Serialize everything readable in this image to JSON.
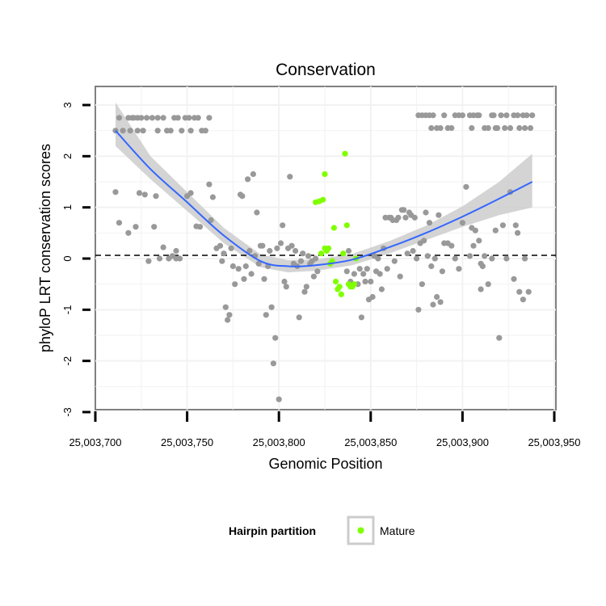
{
  "chart_data": {
    "type": "scatter",
    "title": "Conservation",
    "xlabel": "Genomic Position",
    "ylabel": "phyloP LRT conservation scores",
    "xlim": [
      25003700,
      25003950
    ],
    "ylim": [
      -3,
      3
    ],
    "x_ticks": [
      25003700,
      25003750,
      25003800,
      25003850,
      25003900,
      25003950
    ],
    "x_tick_labels": [
      "25,003,700",
      "25,003,750",
      "25,003,800",
      "25,003,850",
      "25,003,900",
      "25,003,950"
    ],
    "y_ticks": [
      -3,
      -2,
      -1,
      0,
      1,
      2,
      3
    ],
    "y_tick_labels": [
      "-3",
      "-2",
      "-1",
      "0",
      "1",
      "2",
      "3"
    ],
    "reference_line": {
      "y": 0,
      "style": "dashed"
    },
    "legend": {
      "title": "Hairpin partition",
      "entries": [
        {
          "label": "Mature",
          "color": "#7fff00"
        }
      ]
    },
    "colors": {
      "other": "#999999",
      "mature": "#7fff00",
      "smooth": "#3366ff",
      "band": "#cccccc"
    },
    "smooth": {
      "x": [
        25003711,
        25003730,
        25003750,
        25003770,
        25003790,
        25003805,
        25003820,
        25003840,
        25003860,
        25003880,
        25003900,
        25003920,
        25003938
      ],
      "y": [
        2.5,
        1.75,
        1.1,
        0.45,
        -0.05,
        -0.15,
        -0.13,
        -0.02,
        0.22,
        0.5,
        0.82,
        1.17,
        1.5
      ],
      "lower": [
        2.2,
        1.55,
        0.93,
        0.3,
        -0.17,
        -0.27,
        -0.24,
        -0.13,
        0.1,
        0.36,
        0.62,
        0.85,
        1.0
      ],
      "upper": [
        3.05,
        2.0,
        1.3,
        0.6,
        0.08,
        -0.03,
        -0.02,
        0.09,
        0.34,
        0.64,
        1.02,
        1.5,
        2.05
      ]
    },
    "series": [
      {
        "name": "Other",
        "points": [
          [
            25003711,
            2.5
          ],
          [
            25003713,
            2.75
          ],
          [
            25003715,
            2.5
          ],
          [
            25003718,
            2.75
          ],
          [
            25003719,
            2.5
          ],
          [
            25003720,
            2.75
          ],
          [
            25003721,
            2.75
          ],
          [
            25003723,
            2.5
          ],
          [
            25003723,
            2.75
          ],
          [
            25003725,
            2.75
          ],
          [
            25003726,
            2.5
          ],
          [
            25003728,
            2.75
          ],
          [
            25003731,
            2.75
          ],
          [
            25003734,
            2.5
          ],
          [
            25003734,
            2.75
          ],
          [
            25003737,
            2.75
          ],
          [
            25003739,
            2.5
          ],
          [
            25003741,
            2.5
          ],
          [
            25003743,
            2.75
          ],
          [
            25003745,
            2.75
          ],
          [
            25003747,
            2.5
          ],
          [
            25003749,
            2.75
          ],
          [
            25003751,
            2.75
          ],
          [
            25003752,
            2.5
          ],
          [
            25003754,
            2.75
          ],
          [
            25003756,
            2.75
          ],
          [
            25003758,
            2.5
          ],
          [
            25003760,
            2.5
          ],
          [
            25003762,
            2.75
          ],
          [
            25003711,
            1.3
          ],
          [
            25003713,
            0.7
          ],
          [
            25003718,
            0.5
          ],
          [
            25003722,
            0.62
          ],
          [
            25003724,
            1.28
          ],
          [
            25003727,
            1.25
          ],
          [
            25003729,
            -0.05
          ],
          [
            25003732,
            0.62
          ],
          [
            25003733,
            1.22
          ],
          [
            25003735,
            0.0
          ],
          [
            25003737,
            0.22
          ],
          [
            25003740,
            0.0
          ],
          [
            25003742,
            0.05
          ],
          [
            25003744,
            0.15
          ],
          [
            25003744,
            0.0
          ],
          [
            25003746,
            0.0
          ],
          [
            25003750,
            1.22
          ],
          [
            25003752,
            1.28
          ],
          [
            25003755,
            0.63
          ],
          [
            25003757,
            0.62
          ],
          [
            25003762,
            1.45
          ],
          [
            25003763,
            0.75
          ],
          [
            25003764,
            1.2
          ],
          [
            25003766,
            0.2
          ],
          [
            25003768,
            0.25
          ],
          [
            25003769,
            -0.05
          ],
          [
            25003770,
            0.1
          ],
          [
            25003771,
            -0.95
          ],
          [
            25003772,
            -1.2
          ],
          [
            25003773,
            -1.1
          ],
          [
            25003774,
            0.2
          ],
          [
            25003775,
            -0.15
          ],
          [
            25003776,
            -0.5
          ],
          [
            25003778,
            -0.2
          ],
          [
            25003779,
            1.25
          ],
          [
            25003780,
            1.22
          ],
          [
            25003781,
            -0.4
          ],
          [
            25003782,
            -0.15
          ],
          [
            25003783,
            1.55
          ],
          [
            25003784,
            0.15
          ],
          [
            25003785,
            -0.3
          ],
          [
            25003786,
            1.65
          ],
          [
            25003787,
            0.05
          ],
          [
            25003788,
            0.9
          ],
          [
            25003789,
            -0.1
          ],
          [
            25003790,
            0.25
          ],
          [
            25003791,
            0.25
          ],
          [
            25003792,
            -0.4
          ],
          [
            25003793,
            -1.1
          ],
          [
            25003794,
            -0.15
          ],
          [
            25003795,
            0.15
          ],
          [
            25003796,
            -0.95
          ],
          [
            25003797,
            -2.05
          ],
          [
            25003798,
            -1.55
          ],
          [
            25003799,
            0.2
          ],
          [
            25003800,
            -2.75
          ],
          [
            25003801,
            0.3
          ],
          [
            25003802,
            0.65
          ],
          [
            25003803,
            -0.45
          ],
          [
            25003804,
            -0.55
          ],
          [
            25003805,
            0.2
          ],
          [
            25003806,
            1.6
          ],
          [
            25003807,
            0.25
          ],
          [
            25003808,
            -0.1
          ],
          [
            25003809,
            0.15
          ],
          [
            25003810,
            -0.15
          ],
          [
            25003811,
            -1.15
          ],
          [
            25003812,
            -0.05
          ],
          [
            25003813,
            0.1
          ],
          [
            25003814,
            -0.65
          ],
          [
            25003815,
            -0.55
          ],
          [
            25003816,
            0.05
          ],
          [
            25003817,
            -0.1
          ],
          [
            25003818,
            -0.05
          ],
          [
            25003819,
            -0.35
          ],
          [
            25003820,
            0.0
          ],
          [
            25003821,
            -0.25
          ],
          [
            25003837,
            -0.25
          ],
          [
            25003838,
            0.15
          ],
          [
            25003839,
            -0.45
          ],
          [
            25003841,
            -0.3
          ],
          [
            25003843,
            -0.5
          ],
          [
            25003844,
            -0.2
          ],
          [
            25003845,
            -1.15
          ],
          [
            25003846,
            -0.3
          ],
          [
            25003847,
            -0.45
          ],
          [
            25003848,
            -0.2
          ],
          [
            25003849,
            -0.8
          ],
          [
            25003850,
            -0.45
          ],
          [
            25003851,
            -0.75
          ],
          [
            25003852,
            0.05
          ],
          [
            25003853,
            -0.25
          ],
          [
            25003854,
            0.0
          ],
          [
            25003855,
            -0.3
          ],
          [
            25003856,
            -0.6
          ],
          [
            25003857,
            0.2
          ],
          [
            25003858,
            0.8
          ],
          [
            25003859,
            -0.2
          ],
          [
            25003860,
            0.8
          ],
          [
            25003861,
            0.8
          ],
          [
            25003862,
            0.75
          ],
          [
            25003863,
            -0.05
          ],
          [
            25003864,
            0.75
          ],
          [
            25003865,
            0.8
          ],
          [
            25003866,
            -0.35
          ],
          [
            25003867,
            0.95
          ],
          [
            25003868,
            0.95
          ],
          [
            25003869,
            0.8
          ],
          [
            25003870,
            0.1
          ],
          [
            25003871,
            0.9
          ],
          [
            25003872,
            0.85
          ],
          [
            25003873,
            0.15
          ],
          [
            25003874,
            0.8
          ],
          [
            25003875,
            0.0
          ],
          [
            25003876,
            -1.0
          ],
          [
            25003877,
            0.3
          ],
          [
            25003878,
            -0.5
          ],
          [
            25003879,
            0.35
          ],
          [
            25003880,
            0.9
          ],
          [
            25003881,
            0.05
          ],
          [
            25003882,
            0.7
          ],
          [
            25003883,
            -0.15
          ],
          [
            25003884,
            -0.9
          ],
          [
            25003885,
            0.0
          ],
          [
            25003886,
            -0.75
          ],
          [
            25003887,
            0.85
          ],
          [
            25003888,
            -0.85
          ],
          [
            25003889,
            -0.25
          ],
          [
            25003890,
            0.3
          ],
          [
            25003892,
            0.3
          ],
          [
            25003894,
            0.25
          ],
          [
            25003896,
            0.0
          ],
          [
            25003898,
            -0.2
          ],
          [
            25003900,
            0.7
          ],
          [
            25003902,
            1.4
          ],
          [
            25003904,
            0.05
          ],
          [
            25003905,
            0.6
          ],
          [
            25003906,
            0.25
          ],
          [
            25003907,
            0.55
          ],
          [
            25003909,
            0.35
          ],
          [
            25003910,
            -0.1
          ],
          [
            25003910,
            -0.6
          ],
          [
            25003911,
            -0.15
          ],
          [
            25003912,
            0.05
          ],
          [
            25003914,
            -0.5
          ],
          [
            25003916,
            0.0
          ],
          [
            25003918,
            0.55
          ],
          [
            25003920,
            -1.55
          ],
          [
            25003922,
            0.65
          ],
          [
            25003924,
            0.0
          ],
          [
            25003926,
            1.3
          ],
          [
            25003928,
            -0.4
          ],
          [
            25003929,
            0.65
          ],
          [
            25003930,
            0.5
          ],
          [
            25003931,
            -0.65
          ],
          [
            25003933,
            -0.8
          ],
          [
            25003934,
            0.0
          ],
          [
            25003936,
            -0.65
          ],
          [
            25003876,
            2.8
          ],
          [
            25003878,
            2.8
          ],
          [
            25003880,
            2.8
          ],
          [
            25003882,
            2.8
          ],
          [
            25003883,
            2.55
          ],
          [
            25003884,
            2.8
          ],
          [
            25003886,
            2.55
          ],
          [
            25003888,
            2.55
          ],
          [
            25003890,
            2.8
          ],
          [
            25003892,
            2.55
          ],
          [
            25003894,
            2.55
          ],
          [
            25003896,
            2.8
          ],
          [
            25003898,
            2.8
          ],
          [
            25003900,
            2.8
          ],
          [
            25003904,
            2.8
          ],
          [
            25003905,
            2.55
          ],
          [
            25003906,
            2.8
          ],
          [
            25003908,
            2.8
          ],
          [
            25003909,
            2.8
          ],
          [
            25003912,
            2.55
          ],
          [
            25003914,
            2.55
          ],
          [
            25003916,
            2.8
          ],
          [
            25003917,
            2.8
          ],
          [
            25003918,
            2.55
          ],
          [
            25003919,
            2.55
          ],
          [
            25003921,
            2.8
          ],
          [
            25003923,
            2.55
          ],
          [
            25003924,
            2.8
          ],
          [
            25003926,
            2.55
          ],
          [
            25003928,
            2.8
          ],
          [
            25003930,
            2.8
          ],
          [
            25003931,
            2.55
          ],
          [
            25003933,
            2.8
          ],
          [
            25003934,
            2.55
          ],
          [
            25003935,
            2.8
          ],
          [
            25003937,
            2.55
          ],
          [
            25003938,
            2.8
          ]
        ]
      },
      {
        "name": "Mature",
        "points": [
          [
            25003820,
            1.1
          ],
          [
            25003822,
            1.12
          ],
          [
            25003823,
            0.1
          ],
          [
            25003824,
            1.15
          ],
          [
            25003825,
            1.65
          ],
          [
            25003825,
            0.2
          ],
          [
            25003826,
            0.15
          ],
          [
            25003827,
            0.2
          ],
          [
            25003828,
            -0.1
          ],
          [
            25003829,
            -0.05
          ],
          [
            25003830,
            0.6
          ],
          [
            25003831,
            -0.45
          ],
          [
            25003832,
            -0.6
          ],
          [
            25003833,
            -0.55
          ],
          [
            25003834,
            -0.7
          ],
          [
            25003835,
            0.1
          ],
          [
            25003836,
            2.05
          ],
          [
            25003837,
            0.65
          ],
          [
            25003838,
            -0.5
          ],
          [
            25003839,
            -0.55
          ],
          [
            25003840,
            -0.55
          ],
          [
            25003841,
            -0.5
          ],
          [
            25003842,
            0.0
          ]
        ]
      }
    ]
  }
}
